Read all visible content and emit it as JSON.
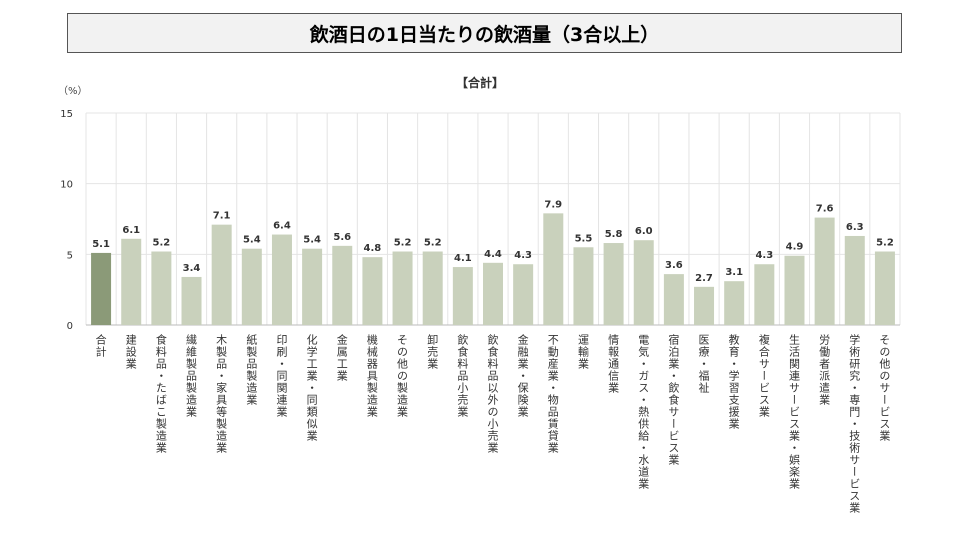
{
  "title": "飲酒日の1日当たりの飲酒量（3合以上）",
  "chart_data": {
    "type": "bar",
    "title": "飲酒日の1日当たりの飲酒量（3合以上）",
    "subtitle": "【合計】",
    "ylabel": "（%）",
    "xlabel": "",
    "ylim": [
      0,
      15
    ],
    "yticks": [
      "0",
      "5",
      "10",
      "15"
    ],
    "grid": true,
    "categories": [
      "合計",
      "建設業",
      "食料品・たばこ製造業",
      "繊維製品製造業",
      "木製品・家具等製造業",
      "紙製品製造業",
      "印刷・同関連業",
      "化学工業・同類似業",
      "金属工業",
      "機械器具製造業",
      "その他の製造業",
      "卸売業",
      "飲食料品小売業",
      "飲食料品以外の小売業",
      "金融業・保険業",
      "不動産業・物品賃貸業",
      "運輸業",
      "情報通信業",
      "電気・ガス・熱供給・水道業",
      "宿泊業・飲食サービス業",
      "医療・福祉",
      "教育・学習支援業",
      "複合サービス業",
      "生活関連サービス業・娯楽業",
      "労働者派遣業",
      "学術研究・専門・技術サービス業",
      "その他のサービス業"
    ],
    "values": [
      5.1,
      6.1,
      5.2,
      3.4,
      7.1,
      5.4,
      6.4,
      5.4,
      5.6,
      4.8,
      5.2,
      5.2,
      4.1,
      4.4,
      4.3,
      7.9,
      5.5,
      5.8,
      6.0,
      3.6,
      2.7,
      3.1,
      4.3,
      4.9,
      7.6,
      6.3,
      5.2
    ],
    "value_labels": [
      "5.1",
      "6.1",
      "5.2",
      "3.4",
      "7.1",
      "5.4",
      "6.4",
      "5.4",
      "5.6",
      "4.8",
      "5.2",
      "5.2",
      "4.1",
      "4.4",
      "4.3",
      "7.9",
      "5.5",
      "5.8",
      "6.0",
      "3.6",
      "2.7",
      "3.1",
      "4.3",
      "4.9",
      "7.6",
      "6.3",
      "5.2"
    ],
    "colors": {
      "highlight": "#8b9a78",
      "bar": "#c9d1bc",
      "grid": "#e4e4e4"
    }
  }
}
